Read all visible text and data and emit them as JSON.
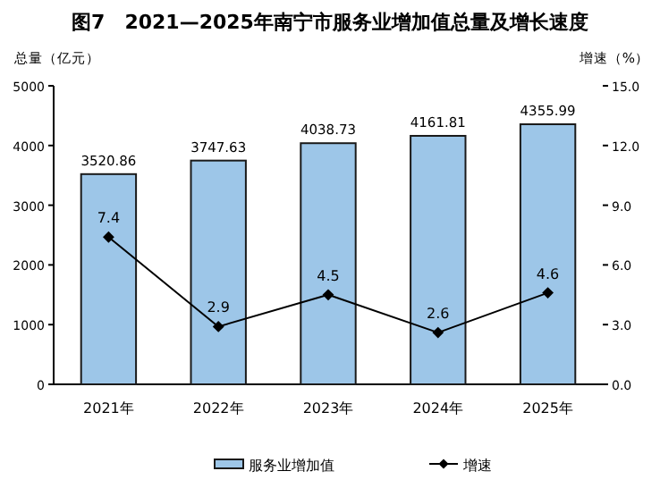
{
  "chart_data": {
    "type": "bar",
    "title": "图7　2021—2025年南宁市服务业增加值总量及增长速度",
    "categories": [
      "2021年",
      "2022年",
      "2023年",
      "2024年",
      "2025年"
    ],
    "series": [
      {
        "name": "服务业增加值",
        "color": "#9dc6e8",
        "values": [
          3520.86,
          3747.63,
          4038.73,
          4161.81,
          4355.99
        ]
      },
      {
        "name": "增速",
        "type": "line",
        "axis": "y2",
        "color": "#000000",
        "marker": "diamond",
        "values": [
          7.4,
          2.9,
          4.5,
          2.6,
          4.6
        ]
      }
    ],
    "ylabel": "总量（亿元）",
    "y2label": "增速（%）",
    "ylim": [
      0,
      5000
    ],
    "yticks": [
      0,
      1000,
      2000,
      3000,
      4000,
      5000
    ],
    "y2lim": [
      0,
      15
    ],
    "y2ticks": [
      {
        "value": 0,
        "label": "0.0"
      },
      {
        "value": 3,
        "label": "3.0"
      },
      {
        "value": 6,
        "label": "6.0"
      },
      {
        "value": 9,
        "label": "9.0"
      },
      {
        "value": 12,
        "label": "12.0"
      },
      {
        "value": 15,
        "label": "15.0"
      }
    ],
    "data_labels": true,
    "legend": "bottom",
    "grid": false
  }
}
